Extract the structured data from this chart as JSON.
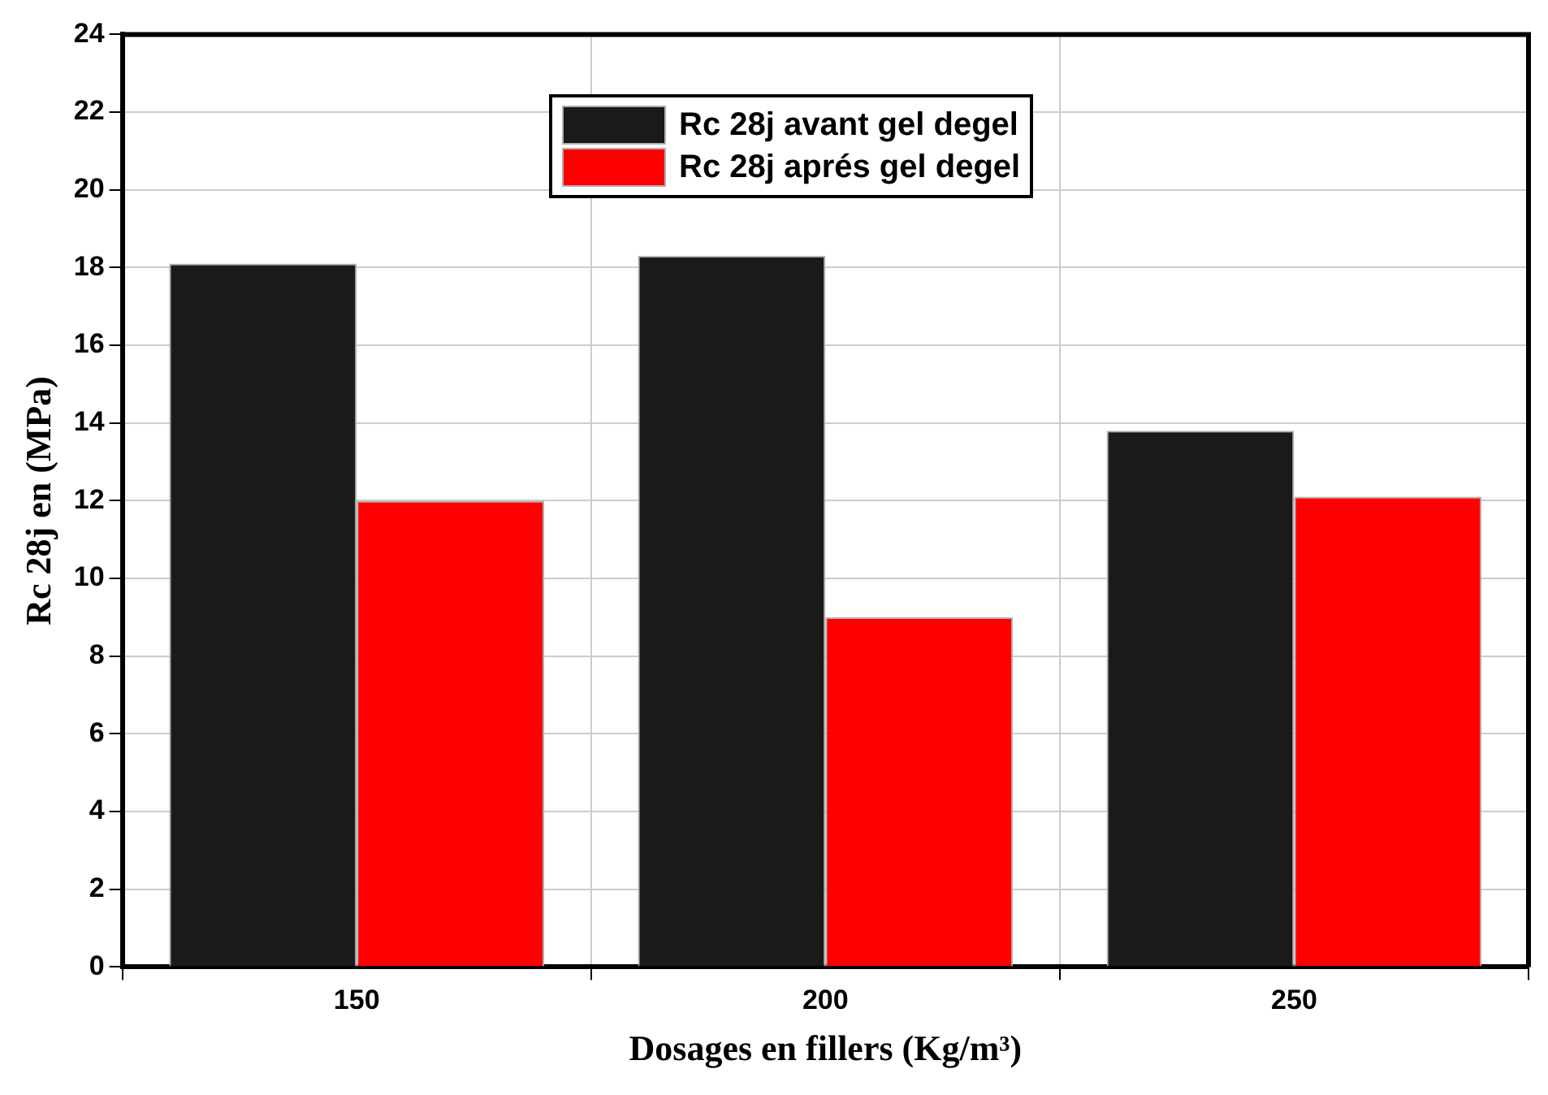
{
  "chart_data": {
    "type": "bar",
    "xlabel": "Dosages en fillers (Kg/m³)",
    "ylabel": "Rc 28j en (MPa)",
    "categories": [
      "150",
      "200",
      "250"
    ],
    "series": [
      {
        "name": "Rc 28j avant gel degel",
        "color": "#1a1a1a",
        "values": [
          18.1,
          18.3,
          13.8
        ]
      },
      {
        "name": "Rc 28j aprés gel degel",
        "color": "#ff0000",
        "values": [
          12.0,
          9.0,
          12.1
        ]
      }
    ],
    "ylim": [
      0,
      24
    ],
    "yticks": [
      0,
      2,
      4,
      6,
      8,
      10,
      12,
      14,
      16,
      18,
      20,
      22,
      24
    ],
    "grid": true,
    "legend": "top"
  }
}
